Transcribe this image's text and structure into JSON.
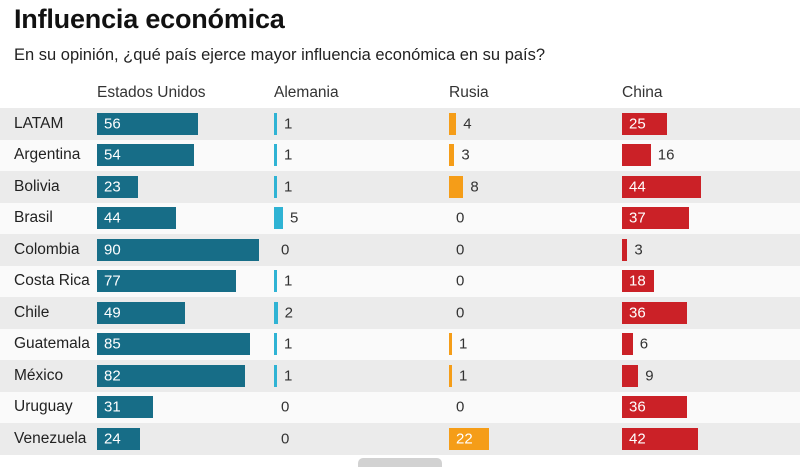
{
  "title": "Influencia económica",
  "subtitle": "En su opinión, ¿qué país ejerce mayor influencia económica en su país?",
  "chart_data": {
    "type": "bar",
    "orientation": "horizontal",
    "title": "Influencia económica",
    "subtitle": "En su opinión, ¿qué país ejerce mayor influencia económica en su país?",
    "xlim": [
      0,
      97
    ],
    "grid": false,
    "legend_position": "column-headers",
    "categories": [
      "LATAM",
      "Argentina",
      "Bolivia",
      "Brasil",
      "Colombia",
      "Costa Rica",
      "Chile",
      "Guatemala",
      "México",
      "Uruguay",
      "Venezuela"
    ],
    "series": [
      {
        "name": "Estados Unidos",
        "color": "#176d87",
        "values": [
          56,
          54,
          23,
          44,
          90,
          77,
          49,
          85,
          82,
          31,
          24
        ]
      },
      {
        "name": "Alemania",
        "color": "#2fb3d4",
        "values": [
          1,
          1,
          1,
          5,
          0,
          1,
          2,
          1,
          1,
          0,
          0
        ]
      },
      {
        "name": "Rusia",
        "color": "#f59d18",
        "values": [
          4,
          3,
          8,
          0,
          0,
          0,
          0,
          1,
          1,
          0,
          22
        ]
      },
      {
        "name": "China",
        "color": "#cb2127",
        "values": [
          25,
          16,
          44,
          37,
          3,
          18,
          36,
          6,
          9,
          36,
          42
        ]
      }
    ],
    "stripe_colors": {
      "even_row": "#ebebeb",
      "odd_row": "#fafafa"
    },
    "value_label_inside_color": "#ffffff",
    "value_label_outside_color": "#333333"
  }
}
